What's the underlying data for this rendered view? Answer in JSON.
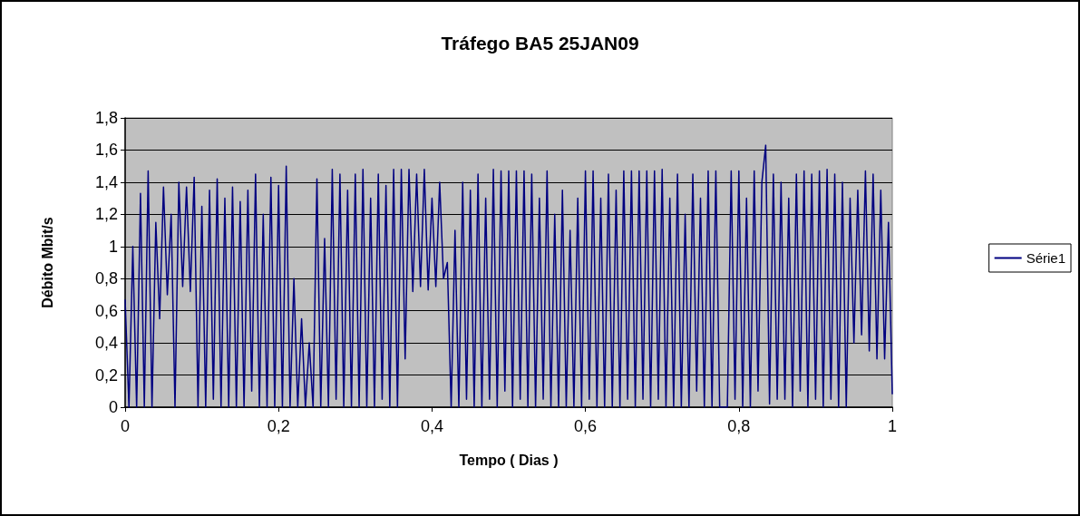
{
  "chart_data": {
    "type": "line",
    "title": "Tráfego BA5 25JAN09",
    "xlabel": "Tempo ( Dias )",
    "ylabel": "Débito Mbit/s",
    "xlim": [
      0,
      1
    ],
    "xticks": [
      0,
      {
        "value": 0.2,
        "label": "0,2"
      },
      {
        "value": 0.4,
        "label": "0,4"
      },
      {
        "value": 0.6,
        "label": "0,6"
      },
      {
        "value": 0.8,
        "label": "0,8"
      },
      1
    ],
    "ylim": [
      0,
      1.8
    ],
    "yticks": [
      0,
      {
        "value": 0.2,
        "label": "0,2"
      },
      {
        "value": 0.4,
        "label": "0,4"
      },
      {
        "value": 0.6,
        "label": "0,6"
      },
      {
        "value": 0.8,
        "label": "0,8"
      },
      1,
      {
        "value": 1.2,
        "label": "1,2"
      },
      {
        "value": 1.4,
        "label": "1,4"
      },
      {
        "value": 1.6,
        "label": "1,6"
      },
      {
        "value": 1.8,
        "label": "1,8"
      }
    ],
    "grid": "y",
    "legend": "right",
    "marker": "none",
    "line_style": "solid",
    "x": [
      0,
      0.005,
      0.01,
      0.015,
      0.02,
      0.025,
      0.03,
      0.035,
      0.04,
      0.045,
      0.05,
      0.055,
      0.06,
      0.065,
      0.07,
      0.075,
      0.08,
      0.085,
      0.09,
      0.095,
      0.1,
      0.105,
      0.11,
      0.115,
      0.12,
      0.125,
      0.13,
      0.135,
      0.14,
      0.145,
      0.15,
      0.155,
      0.16,
      0.165,
      0.17,
      0.175,
      0.18,
      0.185,
      0.19,
      0.195,
      0.2,
      0.205,
      0.21,
      0.215,
      0.22,
      0.225,
      0.23,
      0.235,
      0.24,
      0.245,
      0.25,
      0.255,
      0.26,
      0.265,
      0.27,
      0.275,
      0.28,
      0.285,
      0.29,
      0.295,
      0.3,
      0.305,
      0.31,
      0.315,
      0.32,
      0.325,
      0.33,
      0.335,
      0.34,
      0.345,
      0.35,
      0.355,
      0.36,
      0.365,
      0.37,
      0.375,
      0.38,
      0.385,
      0.39,
      0.395,
      0.4,
      0.405,
      0.41,
      0.415,
      0.42,
      0.425,
      0.43,
      0.435,
      0.44,
      0.445,
      0.45,
      0.455,
      0.46,
      0.465,
      0.47,
      0.475,
      0.48,
      0.485,
      0.49,
      0.495,
      0.5,
      0.505,
      0.51,
      0.515,
      0.52,
      0.525,
      0.53,
      0.535,
      0.54,
      0.545,
      0.55,
      0.555,
      0.56,
      0.565,
      0.57,
      0.575,
      0.58,
      0.585,
      0.59,
      0.595,
      0.6,
      0.605,
      0.61,
      0.615,
      0.62,
      0.625,
      0.63,
      0.635,
      0.64,
      0.645,
      0.65,
      0.655,
      0.66,
      0.665,
      0.67,
      0.675,
      0.68,
      0.685,
      0.69,
      0.695,
      0.7,
      0.705,
      0.71,
      0.715,
      0.72,
      0.725,
      0.73,
      0.735,
      0.74,
      0.745,
      0.75,
      0.755,
      0.76,
      0.765,
      0.77,
      0.775,
      0.78,
      0.785,
      0.79,
      0.795,
      0.8,
      0.805,
      0.81,
      0.815,
      0.82,
      0.825,
      0.83,
      0.835,
      0.84,
      0.845,
      0.85,
      0.855,
      0.86,
      0.865,
      0.87,
      0.875,
      0.88,
      0.885,
      0.89,
      0.895,
      0.9,
      0.905,
      0.91,
      0.915,
      0.92,
      0.925,
      0.93,
      0.935,
      0.94,
      0.945,
      0.95,
      0.955,
      0.96,
      0.965,
      0.97,
      0.975,
      0.98,
      0.985,
      0.99,
      0.995,
      1
    ],
    "series": [
      {
        "name": "Série1",
        "color": "#000080",
        "values": [
          0.67,
          0,
          1.0,
          0,
          1.33,
          0,
          1.47,
          0,
          1.15,
          0.55,
          1.37,
          0.7,
          1.2,
          0,
          1.4,
          0.75,
          1.37,
          0.72,
          1.43,
          0,
          1.25,
          0,
          1.35,
          0.05,
          1.42,
          0,
          1.3,
          0,
          1.37,
          0,
          1.28,
          0,
          1.35,
          0.1,
          1.45,
          0,
          1.2,
          0,
          1.43,
          0,
          1.38,
          0,
          1.5,
          0,
          0.8,
          0,
          0.55,
          0,
          0.4,
          0,
          1.42,
          0,
          1.05,
          0,
          1.48,
          0.05,
          1.45,
          0,
          1.35,
          0,
          1.45,
          0,
          1.48,
          0,
          1.3,
          0,
          1.45,
          0.05,
          1.38,
          0,
          1.48,
          0,
          1.48,
          0.3,
          1.48,
          0.72,
          1.45,
          0.75,
          1.48,
          0.73,
          1.3,
          0.75,
          1.4,
          0.8,
          0.9,
          0,
          1.1,
          0,
          1.4,
          0.05,
          1.35,
          0,
          1.45,
          0,
          1.3,
          0.05,
          1.48,
          0,
          1.47,
          0.1,
          1.47,
          0,
          1.47,
          0.05,
          1.47,
          0,
          1.45,
          0,
          1.3,
          0.05,
          1.47,
          0,
          1.2,
          0,
          1.35,
          0,
          1.1,
          0,
          1.3,
          0,
          1.47,
          0.05,
          1.47,
          0,
          1.3,
          0,
          1.45,
          0,
          1.35,
          0,
          1.47,
          0.05,
          1.47,
          0,
          1.47,
          0.05,
          1.47,
          0,
          1.47,
          0.05,
          1.48,
          0,
          1.3,
          0,
          1.45,
          0,
          1.2,
          0,
          1.45,
          0.1,
          1.3,
          0,
          1.47,
          0,
          1.47,
          0,
          0,
          0,
          1.47,
          0.05,
          1.47,
          0,
          1.3,
          0,
          1.47,
          0.1,
          1.4,
          1.63,
          0.02,
          1.45,
          0.05,
          1.4,
          0.05,
          1.3,
          0,
          1.45,
          0.1,
          1.47,
          0,
          1.45,
          0.05,
          1.47,
          0,
          1.48,
          0.05,
          1.45,
          0,
          1.4,
          0,
          1.3,
          0.4,
          1.35,
          0.45,
          1.47,
          0.35,
          1.45,
          0.3,
          1.35,
          0.3,
          1.15,
          0.08
        ]
      }
    ]
  }
}
